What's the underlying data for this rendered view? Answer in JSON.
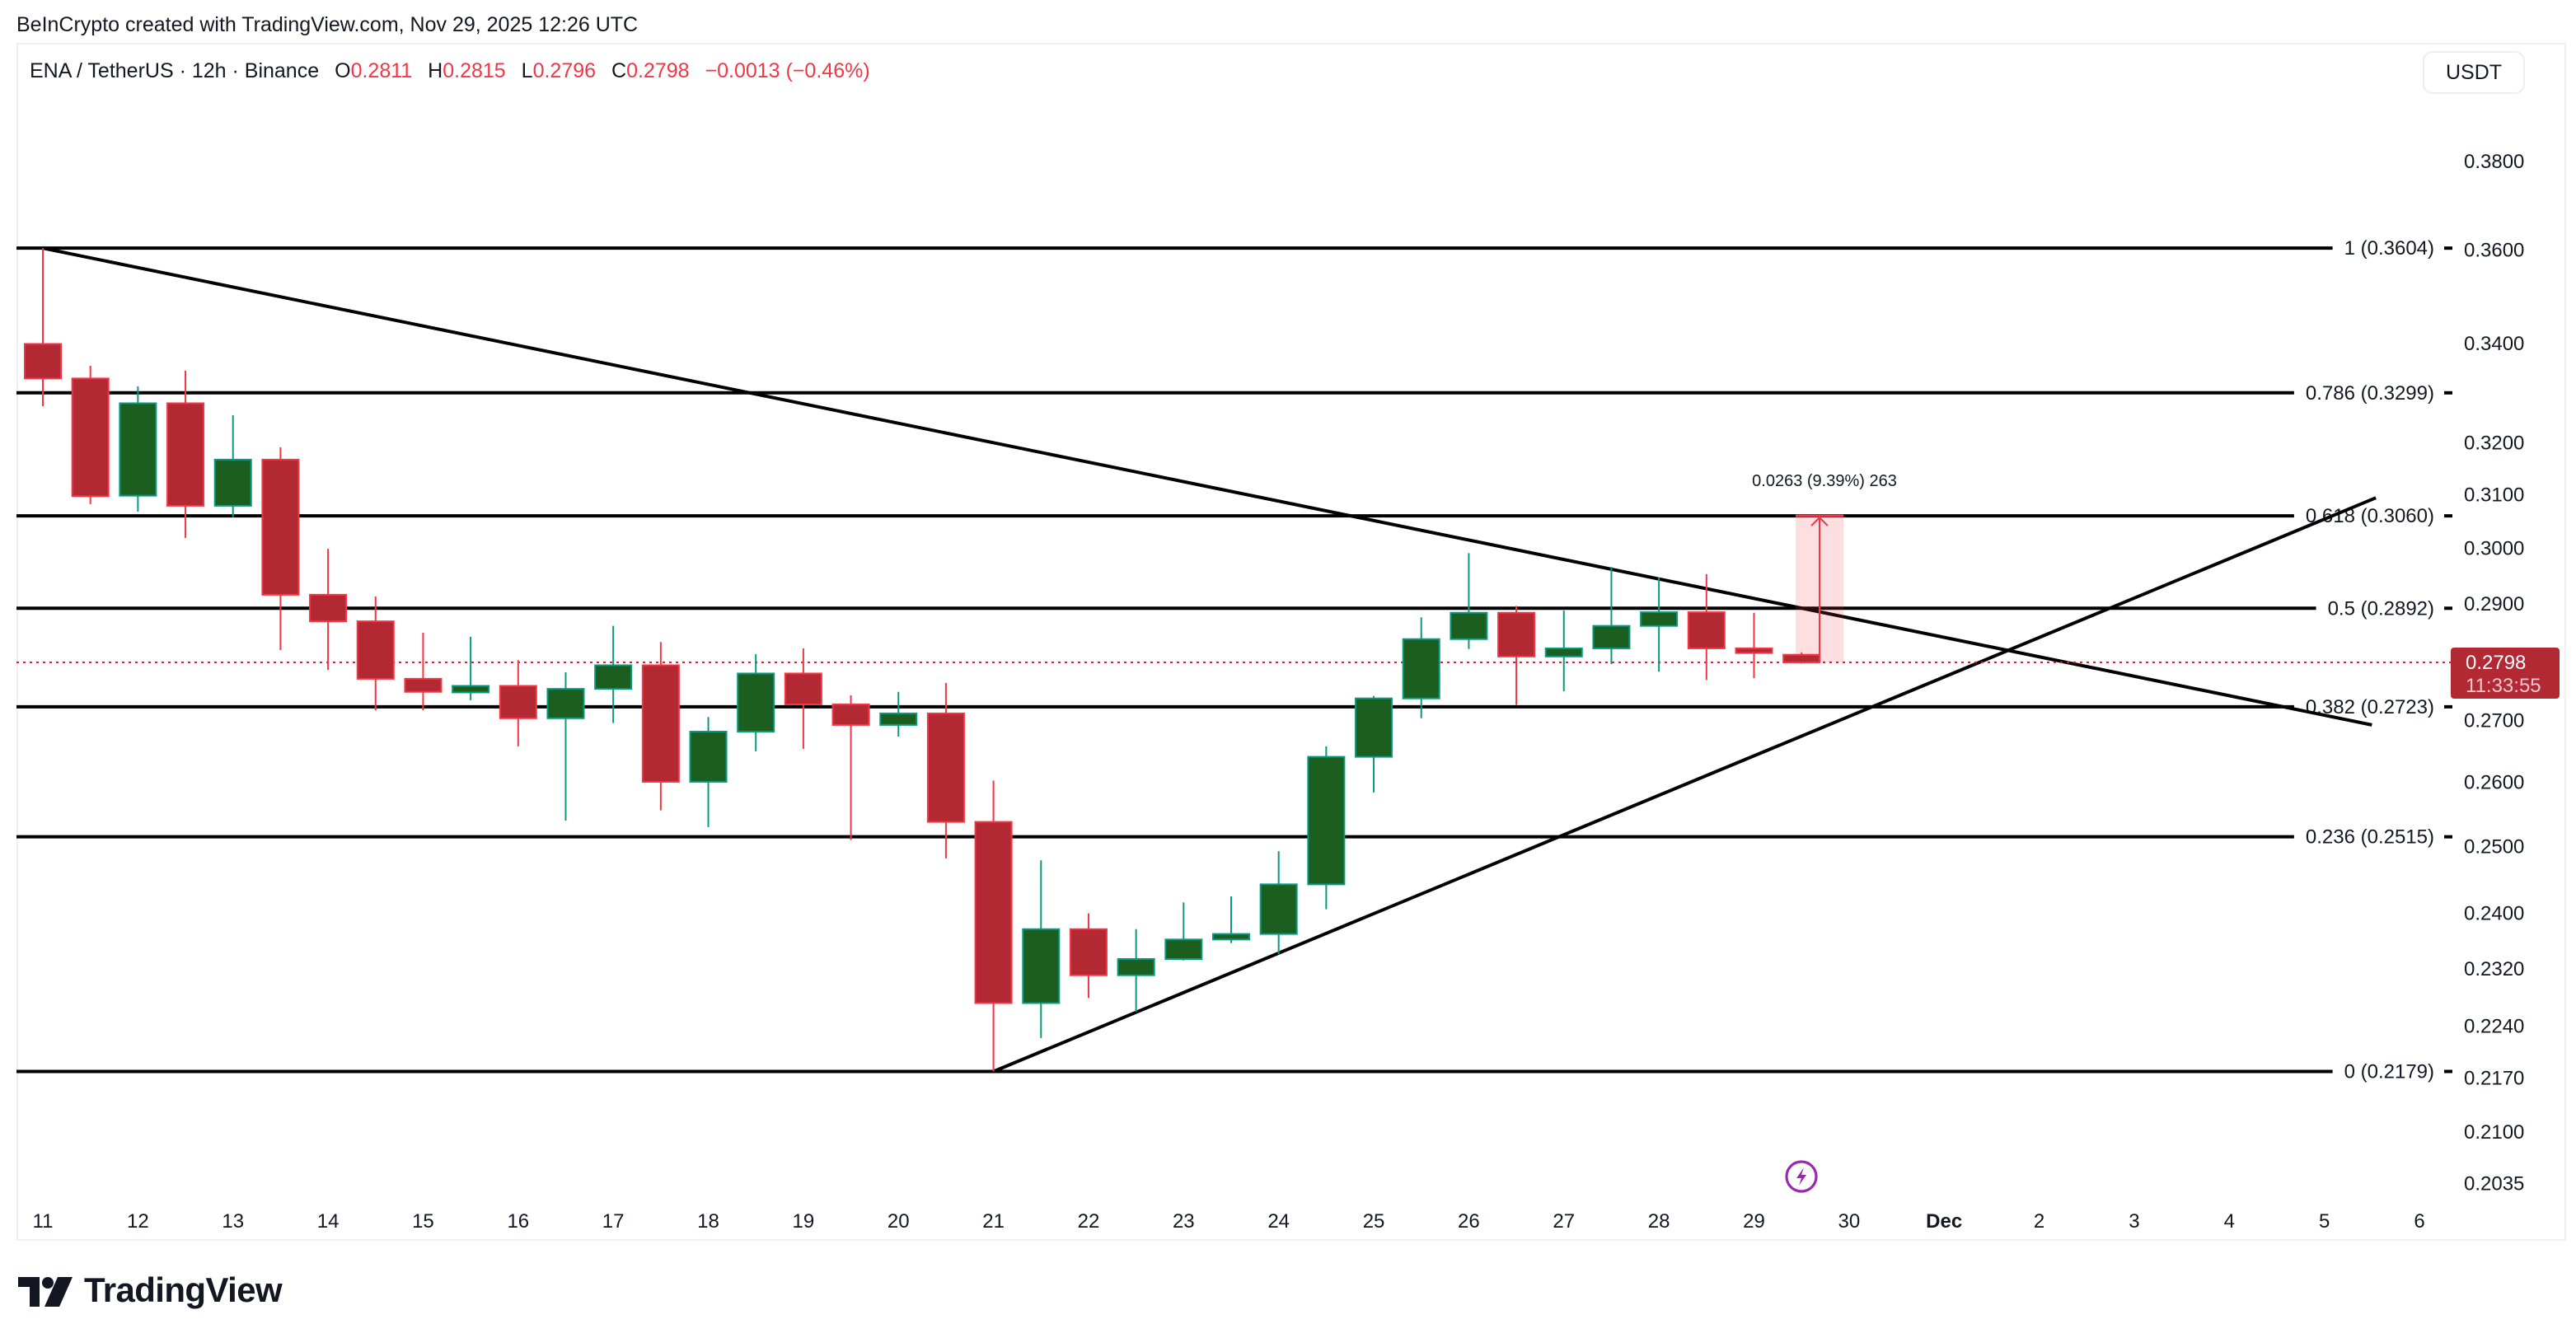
{
  "credit": "BeInCrypto created with TradingView.com, Nov 29, 2025 12:26 UTC",
  "legend": {
    "symbol": "ENA / TetherUS · 12h · Binance",
    "o_label": "O",
    "o": "0.2811",
    "h_label": "H",
    "h": "0.2815",
    "l_label": "L",
    "l": "0.2796",
    "c_label": "C",
    "c": "0.2798",
    "change": "−0.0013 (−0.46%)"
  },
  "currency_button": "USDT",
  "logo_text": "TradingView",
  "colors": {
    "up_fill": "#1b5e20",
    "up_border": "#089981",
    "down_fill": "#b22833",
    "down_border": "#f23645",
    "line": "#000000",
    "last_price": "#b22833",
    "event_icon": "#9c27b0"
  },
  "last_price": {
    "price": "0.2798",
    "countdown": "11:33:55"
  },
  "measure": {
    "label": "0.0263 (9.39%) 263",
    "from": 0.2798,
    "to": 0.306
  },
  "event_icon": "lightning-icon",
  "chart_data": {
    "type": "candlestick",
    "interval": "12h",
    "yscale": "log",
    "ylim": [
      0.2,
      0.392
    ],
    "grid": false,
    "y_ticks": [
      "0.3800",
      "0.3600",
      "0.3400",
      "0.3200",
      "0.3100",
      "0.3000",
      "0.2900",
      "0.2700",
      "0.2600",
      "0.2500",
      "0.2400",
      "0.2320",
      "0.2240",
      "0.2170",
      "0.2100",
      "0.2035"
    ],
    "x_ticks": [
      "11",
      "12",
      "13",
      "14",
      "15",
      "16",
      "17",
      "18",
      "19",
      "20",
      "21",
      "22",
      "23",
      "24",
      "25",
      "26",
      "27",
      "28",
      "29",
      "30",
      "Dec",
      "2",
      "3",
      "4",
      "5",
      "6"
    ],
    "start": "Nov 11 00:00",
    "ohlc": [
      [
        0.3399,
        0.3604,
        0.3272,
        0.3328
      ],
      [
        0.3328,
        0.3354,
        0.3082,
        0.3097
      ],
      [
        0.3098,
        0.3312,
        0.3068,
        0.3278
      ],
      [
        0.3278,
        0.3344,
        0.3019,
        0.3079
      ],
      [
        0.3079,
        0.3254,
        0.3058,
        0.3167
      ],
      [
        0.3167,
        0.3191,
        0.2819,
        0.2916
      ],
      [
        0.2916,
        0.2999,
        0.2785,
        0.2869
      ],
      [
        0.2869,
        0.2913,
        0.2717,
        0.277
      ],
      [
        0.277,
        0.2849,
        0.2717,
        0.2748
      ],
      [
        0.2747,
        0.2842,
        0.2734,
        0.2758
      ],
      [
        0.2758,
        0.2802,
        0.2658,
        0.2704
      ],
      [
        0.2704,
        0.2781,
        0.254,
        0.2753
      ],
      [
        0.2753,
        0.2861,
        0.2696,
        0.2793
      ],
      [
        0.2793,
        0.2833,
        0.2556,
        0.2601
      ],
      [
        0.2601,
        0.2706,
        0.253,
        0.2682
      ],
      [
        0.2682,
        0.2812,
        0.265,
        0.2779
      ],
      [
        0.2779,
        0.2822,
        0.2654,
        0.2727
      ],
      [
        0.2727,
        0.2742,
        0.251,
        0.2693
      ],
      [
        0.2693,
        0.2748,
        0.2674,
        0.2712
      ],
      [
        0.2712,
        0.2763,
        0.2482,
        0.2538
      ],
      [
        0.2538,
        0.2603,
        0.2179,
        0.2272
      ],
      [
        0.2272,
        0.2479,
        0.2224,
        0.2377
      ],
      [
        0.2377,
        0.24,
        0.2279,
        0.2311
      ],
      [
        0.2311,
        0.2377,
        0.226,
        0.2334
      ],
      [
        0.2334,
        0.2416,
        0.2332,
        0.2362
      ],
      [
        0.2362,
        0.2425,
        0.2357,
        0.237
      ],
      [
        0.237,
        0.2493,
        0.2341,
        0.2443
      ],
      [
        0.2443,
        0.2658,
        0.2406,
        0.2641
      ],
      [
        0.2641,
        0.2741,
        0.2584,
        0.2737
      ],
      [
        0.2737,
        0.2876,
        0.2704,
        0.2838
      ],
      [
        0.2838,
        0.2991,
        0.2821,
        0.2884
      ],
      [
        0.2884,
        0.2896,
        0.2726,
        0.2808
      ],
      [
        0.2808,
        0.2888,
        0.2749,
        0.2822
      ],
      [
        0.2822,
        0.2966,
        0.2795,
        0.2861
      ],
      [
        0.2861,
        0.2947,
        0.2782,
        0.2885
      ],
      [
        0.2885,
        0.2953,
        0.2768,
        0.2822
      ],
      [
        0.2822,
        0.2884,
        0.2771,
        0.2814
      ],
      [
        0.2811,
        0.2815,
        0.2796,
        0.2798
      ]
    ],
    "fib_levels": [
      {
        "label": "1 (0.3604)",
        "price": 0.3604
      },
      {
        "label": "0.786 (0.3299)",
        "price": 0.3299
      },
      {
        "label": "0.618 (0.3060)",
        "price": 0.306
      },
      {
        "label": "0.5 (0.2892)",
        "price": 0.2892
      },
      {
        "label": "0.382 (0.2723)",
        "price": 0.2723
      },
      {
        "label": "0.236 (0.2515)",
        "price": 0.2515
      },
      {
        "label": "0 (0.2179)",
        "price": 0.2179
      }
    ],
    "trendlines": [
      {
        "from": [
          "Nov 11 00:00",
          0.3604
        ],
        "to": [
          "Dec 5 12:00",
          0.2693
        ]
      },
      {
        "from": [
          "Nov 21 00:00",
          0.2179
        ],
        "to": [
          "Dec 5 13:00",
          0.3094
        ]
      }
    ]
  }
}
